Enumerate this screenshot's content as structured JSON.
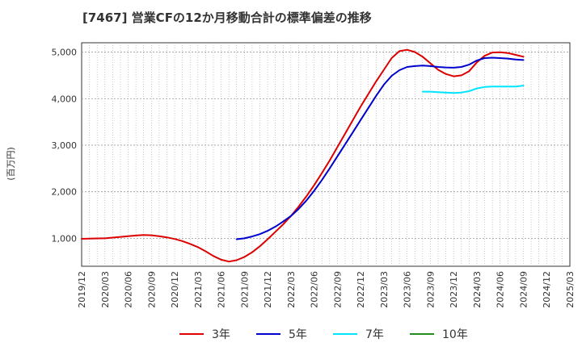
{
  "chart_data": {
    "type": "line",
    "title": "[7467]  営業CFの12か月移動合計の標準偏差の推移",
    "ylabel": "(百万円)",
    "xlabel": "",
    "ylim": [
      400,
      5200
    ],
    "yticks": [
      1000,
      2000,
      3000,
      4000,
      5000
    ],
    "ytick_labels": [
      "1,000",
      "2,000",
      "3,000",
      "4,000",
      "5,000"
    ],
    "xlim": [
      "2019-12",
      "2025-03"
    ],
    "xtick_labels": [
      "2019/12",
      "2020/03",
      "2020/06",
      "2020/09",
      "2020/12",
      "2021/03",
      "2021/06",
      "2021/09",
      "2021/12",
      "2022/03",
      "2022/06",
      "2022/09",
      "2022/12",
      "2023/03",
      "2023/06",
      "2023/09",
      "2023/12",
      "2024/03",
      "2024/06",
      "2024/09",
      "2024/12",
      "2025/03"
    ],
    "grid": true,
    "legend_position": "bottom",
    "series": [
      {
        "name": "3年",
        "color": "#dd0000",
        "x": [
          "2019-12",
          "2020-01",
          "2020-02",
          "2020-03",
          "2020-04",
          "2020-05",
          "2020-06",
          "2020-07",
          "2020-08",
          "2020-09",
          "2020-10",
          "2020-11",
          "2020-12",
          "2021-01",
          "2021-02",
          "2021-03",
          "2021-04",
          "2021-05",
          "2021-06",
          "2021-07",
          "2021-08",
          "2021-09",
          "2021-10",
          "2021-11",
          "2021-12",
          "2022-01",
          "2022-02",
          "2022-03",
          "2022-04",
          "2022-05",
          "2022-06",
          "2022-07",
          "2022-08",
          "2022-09",
          "2022-10",
          "2022-11",
          "2022-12",
          "2023-01",
          "2023-02",
          "2023-03",
          "2023-04",
          "2023-05",
          "2023-06",
          "2023-07",
          "2023-08",
          "2023-09",
          "2023-10",
          "2023-11",
          "2023-12",
          "2024-01",
          "2024-02",
          "2024-03",
          "2024-04",
          "2024-05",
          "2024-06",
          "2024-07",
          "2024-08",
          "2024-09"
        ],
        "values": [
          990,
          995,
          997,
          1000,
          1015,
          1030,
          1045,
          1060,
          1070,
          1065,
          1045,
          1020,
          985,
          940,
          880,
          810,
          720,
          620,
          540,
          500,
          530,
          600,
          700,
          830,
          980,
          1140,
          1300,
          1480,
          1680,
          1900,
          2140,
          2400,
          2670,
          2960,
          3250,
          3540,
          3830,
          4100,
          4370,
          4620,
          4870,
          5020,
          5050,
          5000,
          4900,
          4760,
          4620,
          4530,
          4480,
          4500,
          4590,
          4780,
          4920,
          4990,
          4995,
          4980,
          4940,
          4900
        ]
      },
      {
        "name": "5年",
        "color": "#0000cc",
        "x": [
          "2021-08",
          "2021-09",
          "2021-10",
          "2021-11",
          "2021-12",
          "2022-01",
          "2022-02",
          "2022-03",
          "2022-04",
          "2022-05",
          "2022-06",
          "2022-07",
          "2022-08",
          "2022-09",
          "2022-10",
          "2022-11",
          "2022-12",
          "2023-01",
          "2023-02",
          "2023-03",
          "2023-04",
          "2023-05",
          "2023-06",
          "2023-07",
          "2023-08",
          "2023-09",
          "2023-10",
          "2023-11",
          "2023-12",
          "2024-01",
          "2024-02",
          "2024-03",
          "2024-04",
          "2024-05",
          "2024-06",
          "2024-07",
          "2024-08",
          "2024-09"
        ],
        "values": [
          980,
          1000,
          1040,
          1090,
          1160,
          1250,
          1360,
          1480,
          1630,
          1810,
          2020,
          2250,
          2500,
          2760,
          3020,
          3280,
          3540,
          3800,
          4060,
          4300,
          4490,
          4610,
          4680,
          4700,
          4710,
          4700,
          4680,
          4670,
          4665,
          4680,
          4730,
          4820,
          4870,
          4880,
          4870,
          4860,
          4840,
          4830
        ]
      },
      {
        "name": "7年",
        "color": "#00e5ff",
        "x": [
          "2023-08",
          "2023-09",
          "2023-10",
          "2023-11",
          "2023-12",
          "2024-01",
          "2024-02",
          "2024-03",
          "2024-04",
          "2024-05",
          "2024-06",
          "2024-07",
          "2024-08",
          "2024-09"
        ],
        "values": [
          4150,
          4150,
          4140,
          4130,
          4120,
          4130,
          4160,
          4220,
          4250,
          4260,
          4260,
          4260,
          4260,
          4280
        ]
      },
      {
        "name": "10年",
        "color": "#228b22",
        "x": [],
        "values": []
      }
    ]
  }
}
